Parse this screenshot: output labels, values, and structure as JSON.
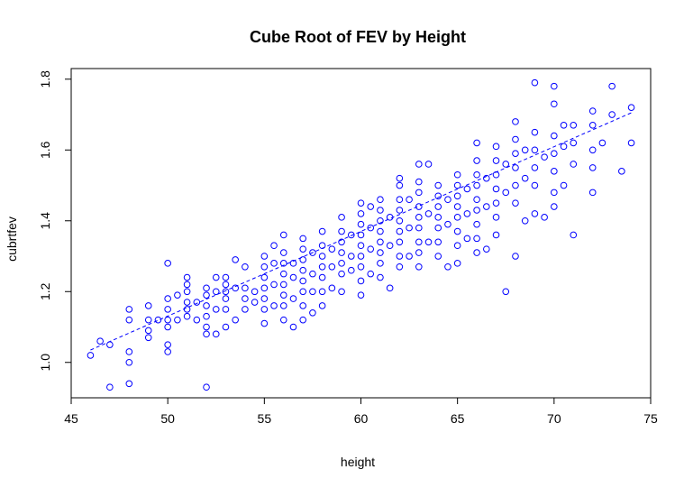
{
  "chart_data": {
    "type": "scatter",
    "title": "Cube Root of FEV by Height",
    "xlabel": "height",
    "ylabel": "cubrtfev",
    "xlim": [
      45,
      75
    ],
    "ylim": [
      0.9,
      1.83
    ],
    "x_ticks": [
      45,
      50,
      55,
      60,
      65,
      70,
      75
    ],
    "x_tick_labels": [
      "45",
      "50",
      "55",
      "60",
      "65",
      "70",
      "75"
    ],
    "y_ticks": [
      1.0,
      1.2,
      1.4,
      1.6,
      1.8
    ],
    "y_tick_labels": [
      "1.0",
      "1.2",
      "1.4",
      "1.6",
      "1.8"
    ],
    "grid": false,
    "legend": "none",
    "colors": {
      "points": "#0000ff",
      "fit_line": "#0000ff",
      "axes": "#000000"
    },
    "fit_line": {
      "style": "dashed",
      "x": [
        46,
        74
      ],
      "y": [
        1.035,
        1.705
      ]
    },
    "series": [
      {
        "marker": "open-circle",
        "points": [
          [
            46,
            1.02
          ],
          [
            46.5,
            1.06
          ],
          [
            47,
            1.05
          ],
          [
            47,
            0.93
          ],
          [
            48,
            0.94
          ],
          [
            48,
            1.0
          ],
          [
            48,
            1.03
          ],
          [
            48,
            1.12
          ],
          [
            48,
            1.15
          ],
          [
            49,
            1.07
          ],
          [
            49,
            1.09
          ],
          [
            49,
            1.12
          ],
          [
            49,
            1.16
          ],
          [
            49.5,
            1.12
          ],
          [
            50,
            1.03
          ],
          [
            50,
            1.05
          ],
          [
            50,
            1.1
          ],
          [
            50,
            1.12
          ],
          [
            50,
            1.15
          ],
          [
            50,
            1.18
          ],
          [
            50,
            1.28
          ],
          [
            50.5,
            1.12
          ],
          [
            50.5,
            1.19
          ],
          [
            51,
            1.13
          ],
          [
            51,
            1.15
          ],
          [
            51,
            1.17
          ],
          [
            51,
            1.2
          ],
          [
            51,
            1.22
          ],
          [
            51,
            1.24
          ],
          [
            51.5,
            1.12
          ],
          [
            51.5,
            1.17
          ],
          [
            52,
            0.93
          ],
          [
            52,
            1.08
          ],
          [
            52,
            1.1
          ],
          [
            52,
            1.13
          ],
          [
            52,
            1.16
          ],
          [
            52,
            1.19
          ],
          [
            52,
            1.21
          ],
          [
            52.5,
            1.08
          ],
          [
            52.5,
            1.15
          ],
          [
            52.5,
            1.2
          ],
          [
            52.5,
            1.24
          ],
          [
            53,
            1.1
          ],
          [
            53,
            1.15
          ],
          [
            53,
            1.18
          ],
          [
            53,
            1.2
          ],
          [
            53,
            1.22
          ],
          [
            53,
            1.24
          ],
          [
            53.5,
            1.12
          ],
          [
            53.5,
            1.21
          ],
          [
            53.5,
            1.29
          ],
          [
            54,
            1.15
          ],
          [
            54,
            1.18
          ],
          [
            54,
            1.21
          ],
          [
            54,
            1.27
          ],
          [
            54.5,
            1.17
          ],
          [
            54.5,
            1.2
          ],
          [
            55,
            1.11
          ],
          [
            55,
            1.15
          ],
          [
            55,
            1.18
          ],
          [
            55,
            1.21
          ],
          [
            55,
            1.24
          ],
          [
            55,
            1.27
          ],
          [
            55,
            1.3
          ],
          [
            55.5,
            1.16
          ],
          [
            55.5,
            1.22
          ],
          [
            55.5,
            1.28
          ],
          [
            55.5,
            1.33
          ],
          [
            56,
            1.12
          ],
          [
            56,
            1.16
          ],
          [
            56,
            1.19
          ],
          [
            56,
            1.22
          ],
          [
            56,
            1.25
          ],
          [
            56,
            1.28
          ],
          [
            56,
            1.31
          ],
          [
            56,
            1.36
          ],
          [
            56.5,
            1.1
          ],
          [
            56.5,
            1.18
          ],
          [
            56.5,
            1.24
          ],
          [
            56.5,
            1.28
          ],
          [
            57,
            1.12
          ],
          [
            57,
            1.16
          ],
          [
            57,
            1.2
          ],
          [
            57,
            1.23
          ],
          [
            57,
            1.26
          ],
          [
            57,
            1.29
          ],
          [
            57,
            1.32
          ],
          [
            57,
            1.35
          ],
          [
            57.5,
            1.14
          ],
          [
            57.5,
            1.2
          ],
          [
            57.5,
            1.25
          ],
          [
            57.5,
            1.31
          ],
          [
            58,
            1.16
          ],
          [
            58,
            1.2
          ],
          [
            58,
            1.24
          ],
          [
            58,
            1.27
          ],
          [
            58,
            1.3
          ],
          [
            58,
            1.33
          ],
          [
            58,
            1.37
          ],
          [
            58.5,
            1.21
          ],
          [
            58.5,
            1.27
          ],
          [
            58.5,
            1.32
          ],
          [
            59,
            1.2
          ],
          [
            59,
            1.25
          ],
          [
            59,
            1.28
          ],
          [
            59,
            1.31
          ],
          [
            59,
            1.34
          ],
          [
            59,
            1.37
          ],
          [
            59,
            1.41
          ],
          [
            59.5,
            1.26
          ],
          [
            59.5,
            1.3
          ],
          [
            59.5,
            1.36
          ],
          [
            60,
            1.19
          ],
          [
            60,
            1.23
          ],
          [
            60,
            1.27
          ],
          [
            60,
            1.3
          ],
          [
            60,
            1.33
          ],
          [
            60,
            1.36
          ],
          [
            60,
            1.39
          ],
          [
            60,
            1.42
          ],
          [
            60,
            1.45
          ],
          [
            60.5,
            1.25
          ],
          [
            60.5,
            1.32
          ],
          [
            60.5,
            1.38
          ],
          [
            60.5,
            1.44
          ],
          [
            61,
            1.24
          ],
          [
            61,
            1.28
          ],
          [
            61,
            1.31
          ],
          [
            61,
            1.34
          ],
          [
            61,
            1.37
          ],
          [
            61,
            1.4
          ],
          [
            61,
            1.43
          ],
          [
            61,
            1.46
          ],
          [
            61.5,
            1.21
          ],
          [
            61.5,
            1.33
          ],
          [
            61.5,
            1.41
          ],
          [
            62,
            1.27
          ],
          [
            62,
            1.3
          ],
          [
            62,
            1.34
          ],
          [
            62,
            1.37
          ],
          [
            62,
            1.4
          ],
          [
            62,
            1.43
          ],
          [
            62,
            1.46
          ],
          [
            62,
            1.5
          ],
          [
            62,
            1.52
          ],
          [
            62.5,
            1.3
          ],
          [
            62.5,
            1.38
          ],
          [
            62.5,
            1.46
          ],
          [
            63,
            1.27
          ],
          [
            63,
            1.31
          ],
          [
            63,
            1.34
          ],
          [
            63,
            1.38
          ],
          [
            63,
            1.41
          ],
          [
            63,
            1.44
          ],
          [
            63,
            1.48
          ],
          [
            63,
            1.51
          ],
          [
            63,
            1.56
          ],
          [
            63.5,
            1.34
          ],
          [
            63.5,
            1.42
          ],
          [
            63.5,
            1.56
          ],
          [
            64,
            1.3
          ],
          [
            64,
            1.34
          ],
          [
            64,
            1.38
          ],
          [
            64,
            1.41
          ],
          [
            64,
            1.44
          ],
          [
            64,
            1.47
          ],
          [
            64,
            1.5
          ],
          [
            64.5,
            1.27
          ],
          [
            64.5,
            1.39
          ],
          [
            64.5,
            1.46
          ],
          [
            65,
            1.28
          ],
          [
            65,
            1.33
          ],
          [
            65,
            1.37
          ],
          [
            65,
            1.41
          ],
          [
            65,
            1.44
          ],
          [
            65,
            1.47
          ],
          [
            65,
            1.5
          ],
          [
            65,
            1.53
          ],
          [
            65.5,
            1.35
          ],
          [
            65.5,
            1.42
          ],
          [
            65.5,
            1.49
          ],
          [
            66,
            1.31
          ],
          [
            66,
            1.35
          ],
          [
            66,
            1.39
          ],
          [
            66,
            1.43
          ],
          [
            66,
            1.46
          ],
          [
            66,
            1.5
          ],
          [
            66,
            1.53
          ],
          [
            66,
            1.57
          ],
          [
            66,
            1.62
          ],
          [
            66.5,
            1.32
          ],
          [
            66.5,
            1.44
          ],
          [
            66.5,
            1.52
          ],
          [
            67,
            1.36
          ],
          [
            67,
            1.41
          ],
          [
            67,
            1.45
          ],
          [
            67,
            1.49
          ],
          [
            67,
            1.53
          ],
          [
            67,
            1.57
          ],
          [
            67,
            1.61
          ],
          [
            67.5,
            1.2
          ],
          [
            67.5,
            1.48
          ],
          [
            67.5,
            1.56
          ],
          [
            68,
            1.3
          ],
          [
            68,
            1.45
          ],
          [
            68,
            1.5
          ],
          [
            68,
            1.55
          ],
          [
            68,
            1.59
          ],
          [
            68,
            1.63
          ],
          [
            68,
            1.68
          ],
          [
            68.5,
            1.4
          ],
          [
            68.5,
            1.52
          ],
          [
            68.5,
            1.6
          ],
          [
            69,
            1.42
          ],
          [
            69,
            1.5
          ],
          [
            69,
            1.55
          ],
          [
            69,
            1.6
          ],
          [
            69,
            1.65
          ],
          [
            69,
            1.79
          ],
          [
            69.5,
            1.41
          ],
          [
            69.5,
            1.58
          ],
          [
            70,
            1.44
          ],
          [
            70,
            1.48
          ],
          [
            70,
            1.54
          ],
          [
            70,
            1.59
          ],
          [
            70,
            1.64
          ],
          [
            70,
            1.73
          ],
          [
            70,
            1.78
          ],
          [
            70.5,
            1.5
          ],
          [
            70.5,
            1.61
          ],
          [
            70.5,
            1.67
          ],
          [
            71,
            1.36
          ],
          [
            71,
            1.56
          ],
          [
            71,
            1.62
          ],
          [
            71,
            1.67
          ],
          [
            72,
            1.48
          ],
          [
            72,
            1.55
          ],
          [
            72,
            1.6
          ],
          [
            72,
            1.67
          ],
          [
            72,
            1.71
          ],
          [
            72.5,
            1.62
          ],
          [
            73,
            1.7
          ],
          [
            73,
            1.78
          ],
          [
            73.5,
            1.54
          ],
          [
            74,
            1.62
          ],
          [
            74,
            1.72
          ]
        ]
      }
    ]
  }
}
